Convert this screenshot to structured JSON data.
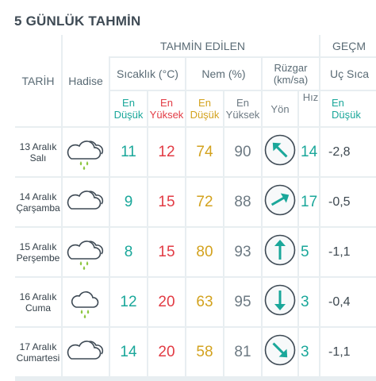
{
  "title": "5 GÜNLÜK TAHMİN",
  "headers": {
    "tahmin_edilen": "TAHMİN EDİLEN",
    "gecmis": "GEÇM",
    "tarih": "TARİH",
    "hadise": "Hadise",
    "sicaklik": "Sıcaklık (°C)",
    "nem": "Nem (%)",
    "ruzgar_line1": "Rüzgar",
    "ruzgar_line2": "(km/sa)",
    "uc_sicaklik": "Uç Sıca",
    "en": "En",
    "dusuk": "Düşük",
    "yuksek": "Yüksek",
    "yon": "Yön",
    "hiz": "Hız"
  },
  "colors": {
    "teal": "#1aa79a",
    "red": "#e23b44",
    "gold": "#d3a21e",
    "grid": "#e8eef1",
    "text": "#3d4f5a"
  },
  "rows": [
    {
      "day": "13 Aralık",
      "weekday": "Salı",
      "icon": "cloud-rain-icon",
      "temp_min": "11",
      "temp_max": "12",
      "hum_min": "74",
      "hum_max": "90",
      "wind_dir": "south-east-arrow-icon",
      "wind_angle": 135,
      "wind_speed": "14",
      "past_min": "-2,8"
    },
    {
      "day": "14 Aralık",
      "weekday": "Çarşamba",
      "icon": "cloud-icon",
      "temp_min": "9",
      "temp_max": "15",
      "hum_min": "72",
      "hum_max": "88",
      "wind_dir": "south-west-arrow-icon",
      "wind_angle": 240,
      "wind_speed": "17",
      "past_min": "-0,5"
    },
    {
      "day": "15 Aralık",
      "weekday": "Perşembe",
      "icon": "cloud-rain-icon",
      "temp_min": "8",
      "temp_max": "15",
      "hum_min": "80",
      "hum_max": "93",
      "wind_dir": "south-arrow-icon",
      "wind_angle": 180,
      "wind_speed": "5",
      "past_min": "-1,1"
    },
    {
      "day": "16 Aralık",
      "weekday": "Cuma",
      "icon": "cloud-rain-small-icon",
      "temp_min": "12",
      "temp_max": "20",
      "hum_min": "63",
      "hum_max": "95",
      "wind_dir": "north-arrow-icon",
      "wind_angle": 0,
      "wind_speed": "3",
      "past_min": "-0,4"
    },
    {
      "day": "17 Aralık",
      "weekday": "Cumartesi",
      "icon": "cloud-icon",
      "temp_min": "14",
      "temp_max": "20",
      "hum_min": "58",
      "hum_max": "81",
      "wind_dir": "north-west-arrow-icon",
      "wind_angle": 315,
      "wind_speed": "3",
      "past_min": "-1,1"
    }
  ]
}
